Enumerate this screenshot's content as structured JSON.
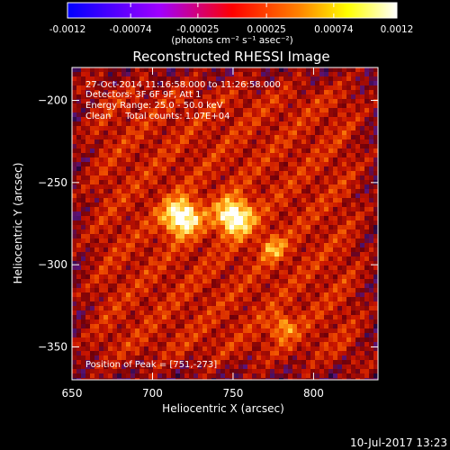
{
  "colorbar": {
    "ticks": [
      "-0.0012",
      "-0.00074",
      "-0.00025",
      "0.00025",
      "0.00074",
      "0.0012"
    ],
    "tick_values": [
      -0.0012,
      -0.00074,
      -0.00025,
      0.00025,
      0.00074,
      0.0012
    ],
    "range": [
      -0.0012,
      0.0012
    ],
    "units": "(photons cm⁻² s⁻¹ asec⁻²)",
    "colors": [
      "#0000ff",
      "#a000ff",
      "#ff0000",
      "#ff8000",
      "#ffff00",
      "#ffffff"
    ]
  },
  "chart_data": {
    "type": "heatmap",
    "title": "Reconstructed RHESSI Image",
    "xlabel": "Heliocentric X (arcsec)",
    "ylabel": "Heliocentric Y (arcsec)",
    "xlim": [
      650,
      840
    ],
    "ylim": [
      -370,
      -180
    ],
    "xticks": [
      650,
      700,
      750,
      800
    ],
    "yticks": [
      -200,
      -250,
      -300,
      -350
    ],
    "annotations": [
      "27-Oct-2014 11:16:58.000 to 11:26:58.000",
      "Detectors: 3F 6F 9F, Att 1",
      "Energy Range: 25.0 - 50.0 keV",
      "Clean     Total counts: 1.07E+04",
      "Position of Peak = [751,-273]"
    ],
    "peak": {
      "x": 751,
      "y": -273
    },
    "sources": [
      {
        "x": 718,
        "y": -271
      },
      {
        "x": 751,
        "y": -271
      },
      {
        "x": 775,
        "y": -290
      },
      {
        "x": 781,
        "y": -338
      }
    ]
  },
  "footer": {
    "timestamp": "10-Jul-2017 13:23"
  }
}
